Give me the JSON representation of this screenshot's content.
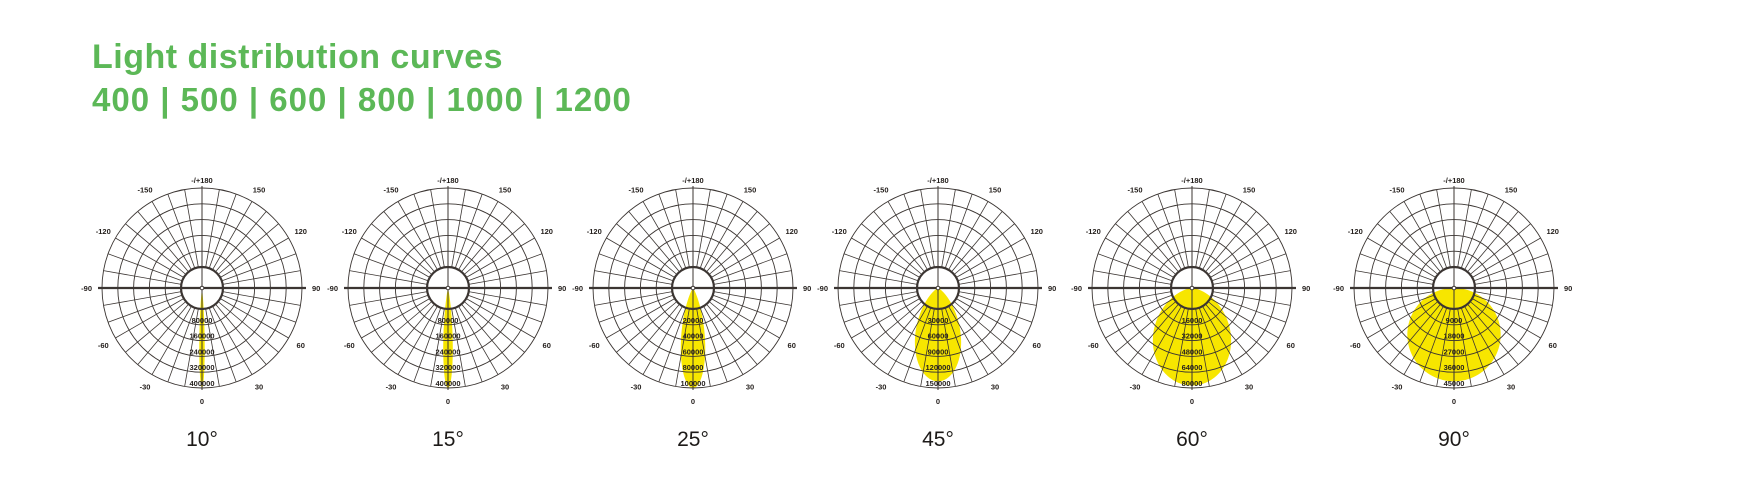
{
  "header": {
    "title": "Light distribution curves",
    "subtitle": "400 | 500 | 600 | 800 | 1000 | 1200"
  },
  "colors": {
    "title_green": "#5CB857",
    "beam_yellow": "#F7E600",
    "grid_dark": "#3B3532",
    "label_dark": "#26211e"
  },
  "polar_grid": {
    "angle_step_deg": 10,
    "ring_count": 5,
    "angle_labels": [
      {
        "angle": 180,
        "text": "-/+180"
      },
      {
        "angle": -150,
        "text": "-150"
      },
      {
        "angle": 150,
        "text": "150"
      },
      {
        "angle": -120,
        "text": "-120"
      },
      {
        "angle": 120,
        "text": "120"
      },
      {
        "angle": -90,
        "text": "-90"
      },
      {
        "angle": 90,
        "text": "90"
      },
      {
        "angle": -60,
        "text": "-60"
      },
      {
        "angle": 60,
        "text": "60"
      },
      {
        "angle": -30,
        "text": "-30"
      },
      {
        "angle": 30,
        "text": "30"
      },
      {
        "angle": 0,
        "text": "0"
      }
    ]
  },
  "chart_data": [
    {
      "type": "polar_intensity",
      "label": "10°",
      "tick_labels": [
        "80000",
        "160000",
        "240000",
        "320000",
        "400000"
      ],
      "tick_values": [
        80000,
        160000,
        240000,
        320000,
        400000
      ],
      "scale_max": 400000,
      "peak_intensity": 400000,
      "beam_exponent": 500
    },
    {
      "type": "polar_intensity",
      "label": "15°",
      "tick_labels": [
        "80000",
        "160000",
        "240000",
        "320000",
        "400000"
      ],
      "tick_values": [
        80000,
        160000,
        240000,
        320000,
        400000
      ],
      "scale_max": 400000,
      "peak_intensity": 400000,
      "beam_exponent": 160
    },
    {
      "type": "polar_intensity",
      "label": "25°",
      "tick_labels": [
        "20000",
        "40000",
        "60000",
        "80000",
        "100000"
      ],
      "tick_values": [
        20000,
        40000,
        60000,
        80000,
        100000
      ],
      "scale_max": 100000,
      "peak_intensity": 100000,
      "beam_exponent": 24
    },
    {
      "type": "polar_intensity",
      "label": "45°",
      "tick_labels": [
        "30000",
        "60000",
        "90000",
        "120000",
        "150000"
      ],
      "tick_values": [
        30000,
        60000,
        90000,
        120000,
        150000
      ],
      "scale_max": 150000,
      "peak_intensity": 140000,
      "beam_exponent": 5.5
    },
    {
      "type": "polar_intensity",
      "label": "60°",
      "tick_labels": [
        "16000",
        "32000",
        "48000",
        "64000",
        "80000"
      ],
      "tick_values": [
        16000,
        32000,
        48000,
        64000,
        80000
      ],
      "scale_max": 80000,
      "peak_intensity": 78000,
      "beam_exponent": 1.8
    },
    {
      "type": "polar_intensity",
      "label": "90°",
      "tick_labels": [
        "9000",
        "18000",
        "27000",
        "36000",
        "45000"
      ],
      "tick_values": [
        9000,
        18000,
        27000,
        36000,
        45000
      ],
      "scale_max": 45000,
      "peak_intensity": 42000,
      "beam_exponent": 1.0
    }
  ]
}
